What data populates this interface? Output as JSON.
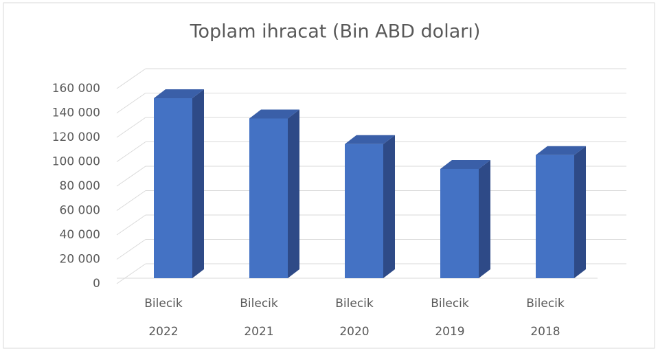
{
  "chart_data": {
    "type": "bar",
    "title": "Toplam ihracat (Bin ABD doları)",
    "categories": [
      [
        "Bilecik",
        "2022"
      ],
      [
        "Bilecik",
        "2021"
      ],
      [
        "Bilecik",
        "2020"
      ],
      [
        "Bilecik",
        "2019"
      ],
      [
        "Bilecik",
        "2018"
      ]
    ],
    "values": [
      147600,
      131000,
      110000,
      89600,
      101000
    ],
    "color": "#4472c4",
    "ylim": [
      0,
      160000
    ],
    "yticks": [
      {
        "value": 0,
        "label": "0"
      },
      {
        "value": 20000,
        "label": "20 000"
      },
      {
        "value": 40000,
        "label": "40 000"
      },
      {
        "value": 60000,
        "label": "60 000"
      },
      {
        "value": 80000,
        "label": "80 000"
      },
      {
        "value": 100000,
        "label": "100 000"
      },
      {
        "value": 120000,
        "label": "120 000"
      },
      {
        "value": 140000,
        "label": "140 000"
      },
      {
        "value": 160000,
        "label": "160 000"
      }
    ],
    "grid": true
  }
}
